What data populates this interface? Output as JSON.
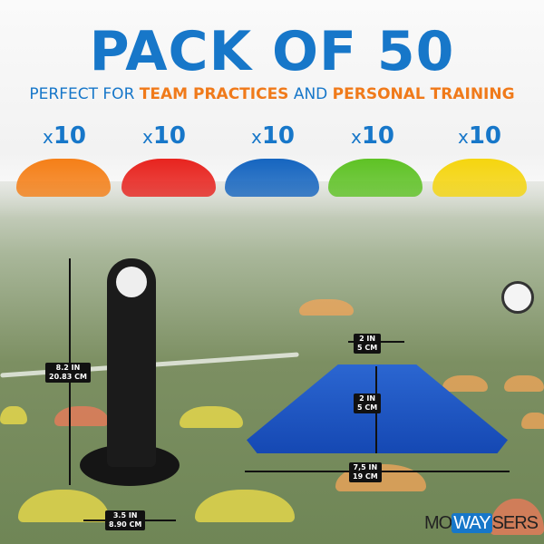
{
  "headline": "PACK OF 50",
  "subtitle": {
    "part1": "PERFECT FOR ",
    "part2": "TEAM PRACTICES",
    "part3": " AND ",
    "part4": "PERSONAL TRAINING"
  },
  "cones": [
    {
      "prefix": "x",
      "count": "10",
      "color": "#f57f17"
    },
    {
      "prefix": "x",
      "count": "10",
      "color": "#e8231e"
    },
    {
      "prefix": "x",
      "count": "10",
      "color": "#1565c0"
    },
    {
      "prefix": "x",
      "count": "10",
      "color": "#5ec224"
    },
    {
      "prefix": "x",
      "count": "10",
      "color": "#f5d50f"
    }
  ],
  "dimensions": {
    "holder_height": [
      "8.2 IN",
      "20.83 CM"
    ],
    "holder_width": [
      "3.5 IN",
      "8.90 CM"
    ],
    "cone_top": [
      "2 IN",
      "5 CM"
    ],
    "cone_height": [
      "2 IN",
      "5 CM"
    ],
    "cone_width": [
      "7,5 IN",
      "19 CM"
    ]
  },
  "brand": {
    "a": "MO",
    "b": "WAY",
    "c": "SERS",
    "accent": "#1777c9"
  }
}
